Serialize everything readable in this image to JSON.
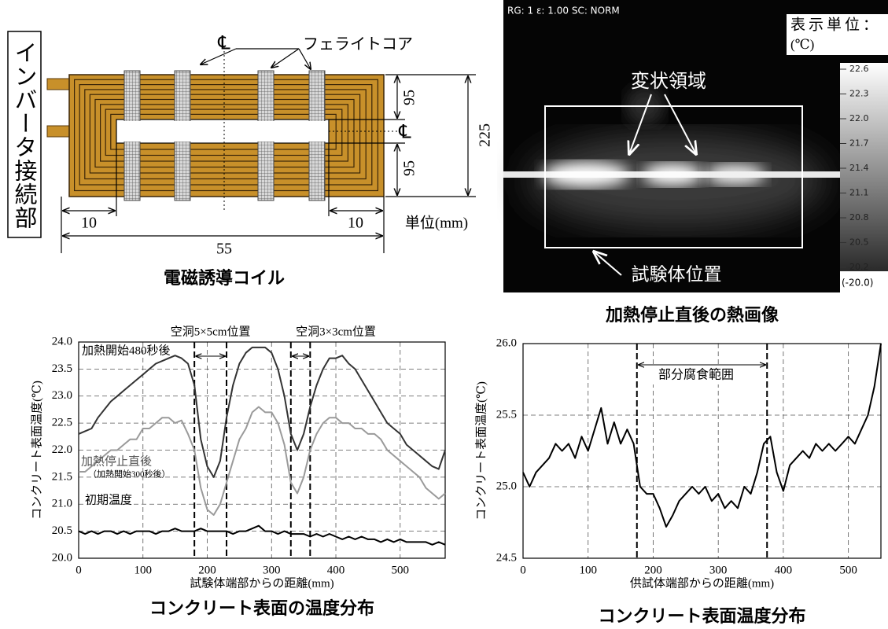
{
  "diagram": {
    "connector": "インバータ接続部",
    "cl_top": "℄",
    "cl_right": "℄",
    "core_label": "フェライトコア",
    "dim_top": "95",
    "dim_bottom": "95",
    "dim_total": "225",
    "dim_left": "10",
    "dim_right": "10",
    "dim_width": "55",
    "unit": "単位(mm)",
    "caption": "電磁誘導コイル"
  },
  "thermal_image": {
    "header": "RG: 1   ε: 1.00   SC: NORM",
    "unit_title": "表示単位：",
    "unit": "(℃)",
    "scale_labels": [
      "22.6",
      "22.3",
      "22.0",
      "21.7",
      "21.4",
      "21.1",
      "20.8",
      "20.5",
      "20.2"
    ],
    "scale_min": "(-20.0)",
    "defect_label": "変状領域",
    "specimen_label": "試験体位置",
    "caption": "加熱停止直後の熱画像"
  },
  "chart_data": [
    {
      "type": "line",
      "title": "コンクリート表面の温度分布",
      "x_label": "試験体端部からの距離(mm)",
      "y_label": "コンクリート表面温度(℃)",
      "x": [
        0,
        10,
        20,
        30,
        40,
        50,
        60,
        70,
        80,
        90,
        100,
        110,
        120,
        130,
        140,
        150,
        160,
        170,
        180,
        190,
        200,
        210,
        220,
        230,
        240,
        250,
        260,
        270,
        280,
        290,
        300,
        310,
        320,
        330,
        340,
        350,
        360,
        370,
        380,
        390,
        400,
        410,
        420,
        430,
        440,
        450,
        460,
        470,
        480,
        490,
        500,
        510,
        520,
        530,
        540,
        550,
        560,
        570
      ],
      "series": [
        {
          "name": "加熱開始480秒後",
          "color": "#333333",
          "values": [
            22.3,
            22.35,
            22.4,
            22.6,
            22.75,
            22.9,
            23.0,
            23.1,
            23.2,
            23.3,
            23.4,
            23.5,
            23.6,
            23.65,
            23.7,
            23.75,
            23.7,
            23.6,
            23.2,
            22.2,
            21.7,
            21.5,
            21.8,
            22.6,
            23.2,
            23.6,
            23.8,
            23.9,
            23.9,
            23.9,
            23.8,
            23.5,
            23.0,
            22.3,
            22.0,
            22.3,
            22.8,
            23.2,
            23.5,
            23.7,
            23.7,
            23.75,
            23.6,
            23.5,
            23.3,
            23.1,
            22.9,
            22.7,
            22.5,
            22.4,
            22.3,
            22.1,
            22.0,
            21.9,
            21.8,
            21.7,
            21.65,
            22.0
          ]
        },
        {
          "name": "加熱停止直後",
          "color": "#9a9a9a",
          "values": [
            21.6,
            21.6,
            21.7,
            21.8,
            21.9,
            22.0,
            22.0,
            22.1,
            22.2,
            22.2,
            22.4,
            22.4,
            22.5,
            22.6,
            22.6,
            22.5,
            22.55,
            22.3,
            22.0,
            21.3,
            20.9,
            20.8,
            21.0,
            21.4,
            21.8,
            22.2,
            22.4,
            22.7,
            22.8,
            22.7,
            22.7,
            22.5,
            22.1,
            21.4,
            21.2,
            21.5,
            22.0,
            22.3,
            22.5,
            22.6,
            22.6,
            22.5,
            22.5,
            22.4,
            22.4,
            22.3,
            22.3,
            22.2,
            22.0,
            21.9,
            21.8,
            21.7,
            21.6,
            21.5,
            21.3,
            21.2,
            21.1,
            21.2
          ]
        },
        {
          "name": "初期温度",
          "color": "#000000",
          "values": [
            20.5,
            20.45,
            20.5,
            20.45,
            20.5,
            20.5,
            20.45,
            20.5,
            20.45,
            20.5,
            20.5,
            20.5,
            20.45,
            20.5,
            20.5,
            20.55,
            20.5,
            20.5,
            20.5,
            20.55,
            20.5,
            20.5,
            20.5,
            20.5,
            20.45,
            20.5,
            20.5,
            20.55,
            20.6,
            20.5,
            20.5,
            20.45,
            20.5,
            20.45,
            20.45,
            20.45,
            20.4,
            20.45,
            20.4,
            20.45,
            20.4,
            20.35,
            20.4,
            20.35,
            20.4,
            20.35,
            20.35,
            20.3,
            20.35,
            20.3,
            20.35,
            20.3,
            20.3,
            20.3,
            20.3,
            20.25,
            20.3,
            20.25
          ]
        }
      ],
      "annotations": [
        "空洞5×5cm位置",
        "空洞3×3cm位置",
        "（加熱開始300秒後）"
      ],
      "vlines": [
        180,
        230,
        330,
        360
      ],
      "xlim": [
        0,
        570
      ],
      "xticks": [
        0,
        100,
        200,
        300,
        400,
        500
      ],
      "ylim": [
        20,
        24
      ],
      "yticks": [
        {
          "value": 20,
          "label": "20.0"
        },
        20.5,
        {
          "value": 21,
          "label": "21.0"
        },
        21.5,
        {
          "value": 22,
          "label": "22.0"
        },
        22.5,
        {
          "value": 23,
          "label": "23.0"
        },
        23.5,
        {
          "value": 24,
          "label": "24.0"
        }
      ],
      "grid": true
    },
    {
      "type": "line",
      "title": "コンクリート表面温度分布",
      "x_label": "供試体端部からの距離(mm)",
      "y_label": "コンクリート表面温度(℃)",
      "x": [
        0,
        10,
        20,
        30,
        40,
        50,
        60,
        70,
        80,
        90,
        100,
        110,
        120,
        130,
        140,
        150,
        160,
        170,
        180,
        190,
        200,
        210,
        220,
        230,
        240,
        250,
        260,
        270,
        280,
        290,
        300,
        310,
        320,
        330,
        340,
        350,
        360,
        370,
        380,
        390,
        400,
        410,
        420,
        430,
        440,
        450,
        460,
        470,
        480,
        490,
        500,
        510,
        520,
        530,
        540,
        550
      ],
      "series": [
        {
          "color": "#000000",
          "values": [
            25.1,
            25.0,
            25.1,
            25.15,
            25.2,
            25.3,
            25.25,
            25.3,
            25.2,
            25.35,
            25.25,
            25.4,
            25.55,
            25.3,
            25.45,
            25.3,
            25.4,
            25.3,
            25.0,
            24.95,
            24.95,
            24.85,
            24.72,
            24.8,
            24.9,
            24.95,
            25.0,
            24.95,
            25.0,
            24.9,
            24.95,
            24.85,
            24.9,
            24.85,
            25.0,
            24.95,
            25.1,
            25.3,
            25.35,
            25.1,
            24.97,
            25.15,
            25.2,
            25.25,
            25.2,
            25.3,
            25.25,
            25.3,
            25.25,
            25.3,
            25.35,
            25.3,
            25.4,
            25.5,
            25.7,
            26.0
          ]
        }
      ],
      "annotations": [
        "部分腐食範囲"
      ],
      "vlines": [
        175,
        375
      ],
      "xlim": [
        0,
        550
      ],
      "xticks": [
        0,
        100,
        200,
        300,
        400,
        500
      ],
      "ylim": [
        24.5,
        26
      ],
      "yticks": [
        24.5,
        {
          "value": 25,
          "label": "25.0"
        },
        25.5,
        {
          "value": 26,
          "label": "26.0"
        }
      ],
      "grid": true
    }
  ]
}
